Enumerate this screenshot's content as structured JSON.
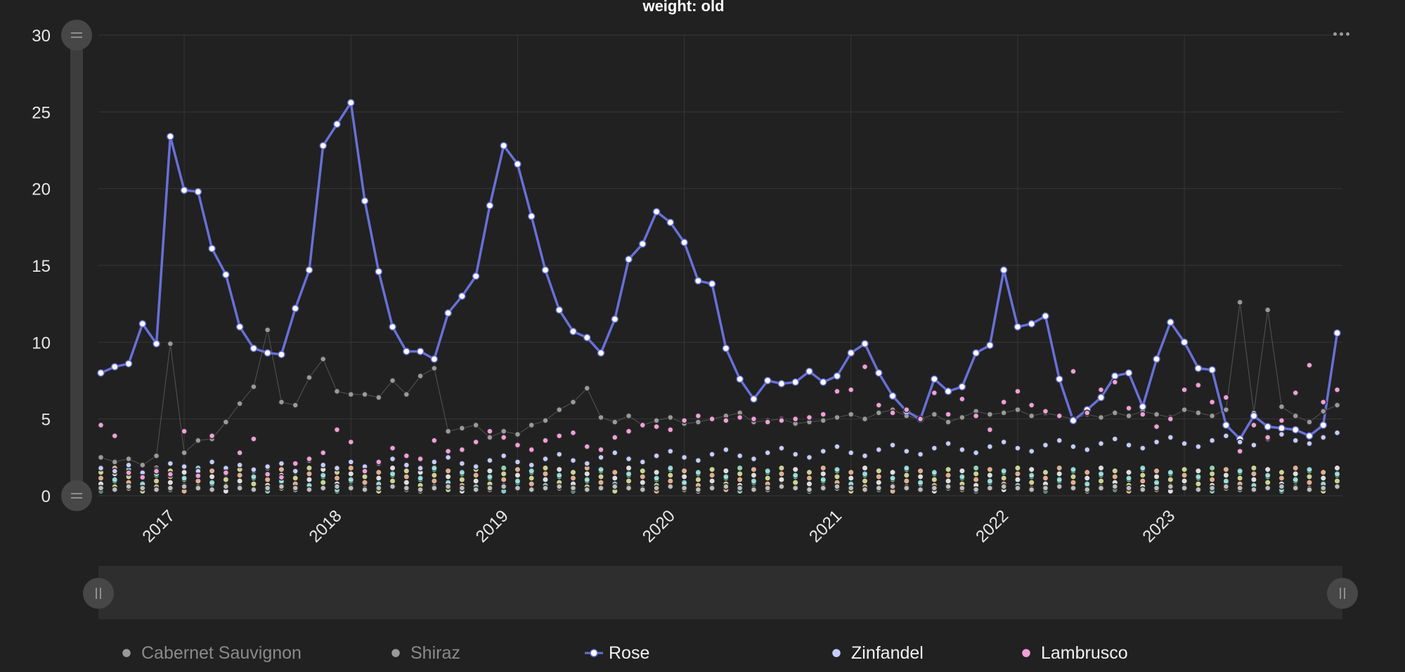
{
  "chart_data": {
    "type": "line",
    "title": "weight: old",
    "xlabel": "",
    "ylabel": "",
    "ylim": [
      0,
      30
    ],
    "y_ticks": [
      0,
      5,
      10,
      15,
      20,
      25,
      30
    ],
    "x_tick_labels": [
      "2017",
      "2018",
      "2019",
      "2020",
      "2021",
      "2022",
      "2023"
    ],
    "x_range": [
      "2016-07",
      "2023-12"
    ],
    "grid": true,
    "legend_position": "bottom",
    "data_zoom": {
      "y_slider": true,
      "x_slider": true
    },
    "x": [
      "2016-07",
      "2016-08",
      "2016-09",
      "2016-10",
      "2016-11",
      "2016-12",
      "2017-01",
      "2017-02",
      "2017-03",
      "2017-04",
      "2017-05",
      "2017-06",
      "2017-07",
      "2017-08",
      "2017-09",
      "2017-10",
      "2017-11",
      "2017-12",
      "2018-01",
      "2018-02",
      "2018-03",
      "2018-04",
      "2018-05",
      "2018-06",
      "2018-07",
      "2018-08",
      "2018-09",
      "2018-10",
      "2018-11",
      "2018-12",
      "2019-01",
      "2019-02",
      "2019-03",
      "2019-04",
      "2019-05",
      "2019-06",
      "2019-07",
      "2019-08",
      "2019-09",
      "2019-10",
      "2019-11",
      "2019-12",
      "2020-01",
      "2020-02",
      "2020-03",
      "2020-04",
      "2020-05",
      "2020-06",
      "2020-07",
      "2020-08",
      "2020-09",
      "2020-10",
      "2020-11",
      "2020-12",
      "2021-01",
      "2021-02",
      "2021-03",
      "2021-04",
      "2021-05",
      "2021-06",
      "2021-07",
      "2021-08",
      "2021-09",
      "2021-10",
      "2021-11",
      "2021-12",
      "2022-01",
      "2022-02",
      "2022-03",
      "2022-04",
      "2022-05",
      "2022-06",
      "2022-07",
      "2022-08",
      "2022-09",
      "2022-10",
      "2022-11",
      "2022-12",
      "2023-01",
      "2023-02",
      "2023-03",
      "2023-04",
      "2023-05",
      "2023-06",
      "2023-07",
      "2023-08",
      "2023-09",
      "2023-10",
      "2023-11",
      "2023-12"
    ],
    "series": [
      {
        "name": "Cabernet Sauvignon",
        "color": "#bdbdbd",
        "line": false,
        "values": [
          0.5,
          0.4,
          0.6,
          0.5,
          0.4,
          0.5,
          0.6,
          0.5,
          0.4,
          0.6,
          0.5,
          0.4,
          0.5,
          0.6,
          0.5,
          0.4,
          0.5,
          0.6,
          0.5,
          0.4,
          0.5,
          0.6,
          0.5,
          0.4,
          0.5,
          0.6,
          0.5,
          0.4,
          0.5,
          0.6,
          0.5,
          0.4,
          0.5,
          0.6,
          0.5,
          0.4,
          0.5,
          0.6,
          0.5,
          0.4,
          0.5,
          0.6,
          0.5,
          0.4,
          0.5,
          0.6,
          0.5,
          0.4,
          0.5,
          0.6,
          0.5,
          0.4,
          0.5,
          0.6,
          0.5,
          0.4,
          0.5,
          0.6,
          0.5,
          0.4,
          0.5,
          0.6,
          0.5,
          0.4,
          0.5,
          0.6,
          0.5,
          0.4,
          0.5,
          0.6,
          0.5,
          0.4,
          0.5,
          0.6,
          0.5,
          0.4,
          0.5,
          0.6,
          0.5,
          0.4,
          0.5,
          0.6,
          0.5,
          0.4,
          0.5,
          0.6,
          0.5,
          0.4,
          0.5,
          0.6
        ]
      },
      {
        "name": "Shiraz",
        "color": "#9a9a9a",
        "line": true,
        "values": [
          2.5,
          2.2,
          2.4,
          2.0,
          2.6,
          9.9,
          2.8,
          3.6,
          3.7,
          4.8,
          6.0,
          7.1,
          10.8,
          6.1,
          5.9,
          7.7,
          8.9,
          6.8,
          6.6,
          6.6,
          6.4,
          7.5,
          6.6,
          7.8,
          8.3,
          4.2,
          4.4,
          4.6,
          3.8,
          4.2,
          4.0,
          4.6,
          4.9,
          5.6,
          6.1,
          7.0,
          5.1,
          4.8,
          5.2,
          4.6,
          4.9,
          5.1,
          4.7,
          4.8,
          5.0,
          5.2,
          5.4,
          4.8,
          4.9,
          5.0,
          4.7,
          4.8,
          4.9,
          5.1,
          5.3,
          5.0,
          5.4,
          5.6,
          5.2,
          5.0,
          5.3,
          4.8,
          5.1,
          5.5,
          5.3,
          5.4,
          5.6,
          5.2,
          5.4,
          5.2,
          5.0,
          5.3,
          5.1,
          5.4,
          5.2,
          5.5,
          5.3,
          5.1,
          5.6,
          5.4,
          5.2,
          5.6,
          12.6,
          5.4,
          12.1,
          5.8,
          5.2,
          4.8,
          5.5,
          5.9
        ]
      },
      {
        "name": "Rose",
        "color": "#6870d8",
        "line": true,
        "values": [
          8.0,
          8.4,
          8.6,
          11.2,
          9.9,
          23.4,
          19.9,
          19.8,
          16.1,
          14.4,
          11.0,
          9.6,
          9.3,
          9.2,
          12.2,
          14.7,
          22.8,
          24.2,
          25.6,
          19.2,
          14.6,
          11.0,
          9.4,
          9.4,
          8.9,
          11.9,
          13.0,
          14.3,
          18.9,
          22.8,
          21.6,
          18.2,
          14.7,
          12.1,
          10.7,
          10.3,
          9.3,
          11.5,
          15.4,
          16.4,
          18.5,
          17.8,
          16.5,
          14.0,
          13.8,
          9.6,
          7.6,
          6.3,
          7.5,
          7.3,
          7.4,
          8.1,
          7.4,
          7.8,
          9.3,
          9.9,
          8.0,
          6.5,
          5.5,
          5.0,
          7.6,
          6.8,
          7.1,
          9.3,
          9.8,
          14.7,
          11.0,
          11.2,
          11.7,
          7.6,
          4.9,
          5.6,
          6.4,
          7.8,
          8.0,
          5.8,
          8.9,
          11.3,
          10.0,
          8.3,
          8.2,
          4.6,
          3.7,
          5.2,
          4.5,
          4.4,
          4.3,
          3.9,
          4.6,
          10.6
        ]
      },
      {
        "name": "Zinfandel",
        "color": "#c7ccff",
        "line": false,
        "values": [
          1.8,
          1.6,
          2.0,
          1.5,
          1.7,
          2.1,
          1.9,
          1.6,
          2.2,
          1.8,
          2.0,
          1.7,
          1.9,
          2.1,
          1.6,
          2.3,
          2.0,
          1.8,
          2.2,
          1.9,
          2.1,
          2.4,
          2.0,
          1.8,
          2.2,
          2.5,
          2.1,
          1.9,
          2.3,
          2.6,
          2.2,
          2.0,
          2.4,
          2.7,
          2.3,
          2.1,
          2.5,
          2.8,
          2.4,
          2.2,
          2.6,
          2.9,
          2.5,
          2.3,
          2.7,
          3.0,
          2.6,
          2.4,
          2.8,
          3.1,
          2.7,
          2.5,
          2.9,
          3.2,
          2.8,
          2.6,
          3.0,
          3.3,
          2.9,
          2.7,
          3.1,
          3.4,
          3.0,
          2.8,
          3.2,
          3.5,
          3.1,
          2.9,
          3.3,
          3.6,
          3.2,
          3.0,
          3.4,
          3.7,
          3.3,
          3.1,
          3.5,
          3.8,
          3.4,
          3.2,
          3.6,
          3.9,
          3.5,
          3.3,
          3.7,
          4.0,
          3.6,
          3.4,
          3.8,
          4.1
        ]
      },
      {
        "name": "Lambrusco",
        "color": "#f2a0d8",
        "line": false,
        "values": [
          4.6,
          3.9,
          1.5,
          1.2,
          1.6,
          1.4,
          4.2,
          1.3,
          3.9,
          1.5,
          2.8,
          3.7,
          1.4,
          1.2,
          2.1,
          2.4,
          2.8,
          4.3,
          3.5,
          1.6,
          2.2,
          3.1,
          2.6,
          2.4,
          3.6,
          2.9,
          3.0,
          3.5,
          4.2,
          3.8,
          3.3,
          3.0,
          3.6,
          3.9,
          4.1,
          3.2,
          3.0,
          3.8,
          4.2,
          4.6,
          4.5,
          4.3,
          4.9,
          5.2,
          5.0,
          4.9,
          5.1,
          5.0,
          4.8,
          4.9,
          5.0,
          5.1,
          5.3,
          6.8,
          6.9,
          8.4,
          5.9,
          5.4,
          5.6,
          5.0,
          6.7,
          5.3,
          6.3,
          5.2,
          4.3,
          6.1,
          6.8,
          5.9,
          5.5,
          5.2,
          8.1,
          5.4,
          6.9,
          7.4,
          5.7,
          5.3,
          4.5,
          5.0,
          6.9,
          7.2,
          6.1,
          6.4,
          2.9,
          4.6,
          3.8,
          4.9,
          6.7,
          8.5,
          6.1,
          6.9
        ]
      }
    ],
    "background_series_colors": [
      "#a8f0d0",
      "#eaf2a8",
      "#ffc9a8",
      "#ffffff",
      "#9fe6e8"
    ]
  },
  "legend": [
    {
      "label": "Cabernet Sauvignon",
      "icon": "dot-marker",
      "active": false
    },
    {
      "label": "Shiraz",
      "icon": "dot-marker",
      "active": false
    },
    {
      "label": "Rose",
      "icon": "line-dot-marker",
      "active": true
    },
    {
      "label": "Zinfandel",
      "icon": "dot-marker",
      "active": true
    },
    {
      "label": "Lambrusco",
      "icon": "dot-marker",
      "active": true
    }
  ],
  "toolbar": {
    "menu_icon": "more-horizontal-icon"
  }
}
